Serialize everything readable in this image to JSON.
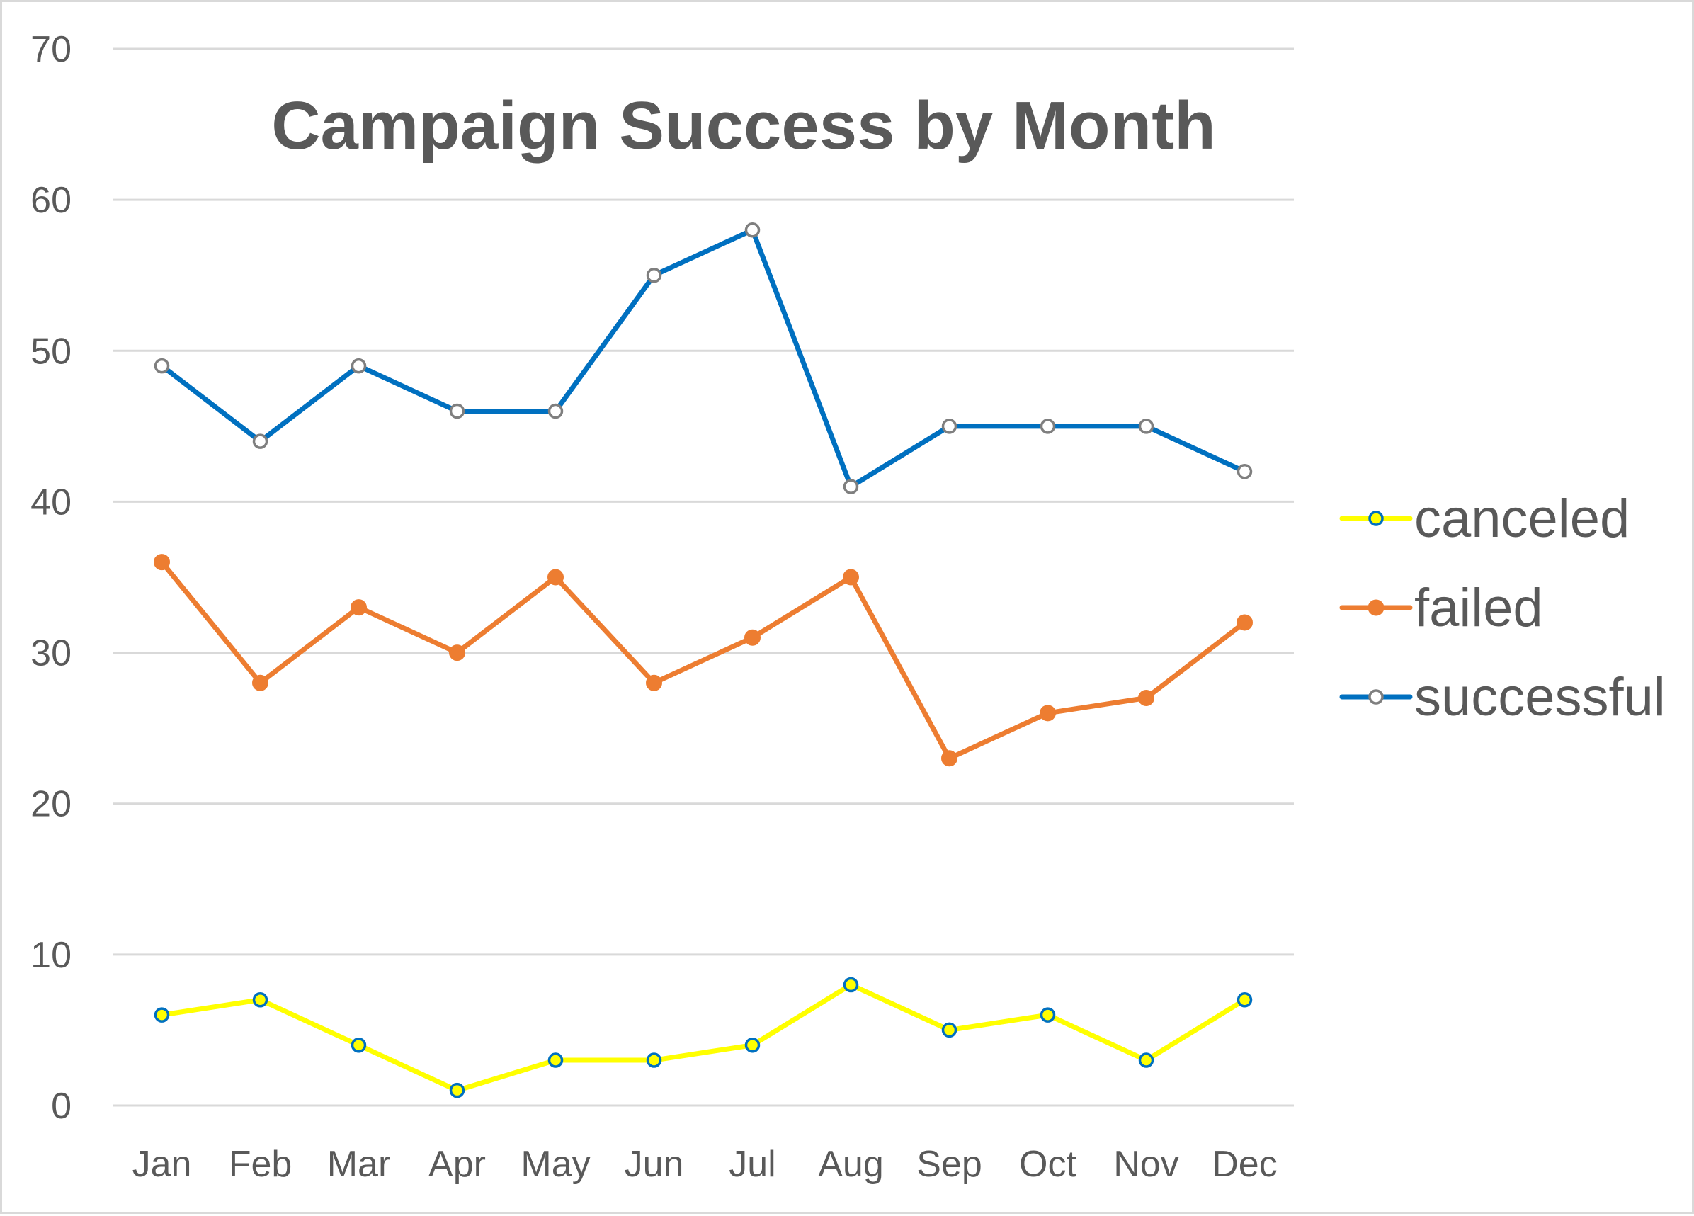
{
  "chart_data": {
    "type": "line",
    "title": "Campaign Success by Month",
    "xlabel": "",
    "ylabel": "",
    "categories": [
      "Jan",
      "Feb",
      "Mar",
      "Apr",
      "May",
      "Jun",
      "Jul",
      "Aug",
      "Sep",
      "Oct",
      "Nov",
      "Dec"
    ],
    "ylim": [
      0,
      70
    ],
    "yticks": [
      "0",
      "10",
      "20",
      "30",
      "40",
      "50",
      "60",
      "70"
    ],
    "grid": true,
    "legend_position": "right",
    "series": [
      {
        "name": "canceled",
        "color": "#FFFF00",
        "marker": "hollow-circle-blue-edge",
        "values": [
          6,
          7,
          4,
          1,
          3,
          3,
          4,
          8,
          5,
          6,
          3,
          7
        ]
      },
      {
        "name": "failed",
        "color": "#ED7D31",
        "marker": "filled-circle",
        "values": [
          36,
          28,
          33,
          30,
          35,
          28,
          31,
          35,
          23,
          26,
          27,
          32
        ]
      },
      {
        "name": "successful",
        "color": "#0070C0",
        "marker": "hollow-circle-gray-edge",
        "values": [
          49,
          44,
          49,
          46,
          46,
          55,
          58,
          41,
          45,
          45,
          45,
          42
        ]
      }
    ]
  }
}
